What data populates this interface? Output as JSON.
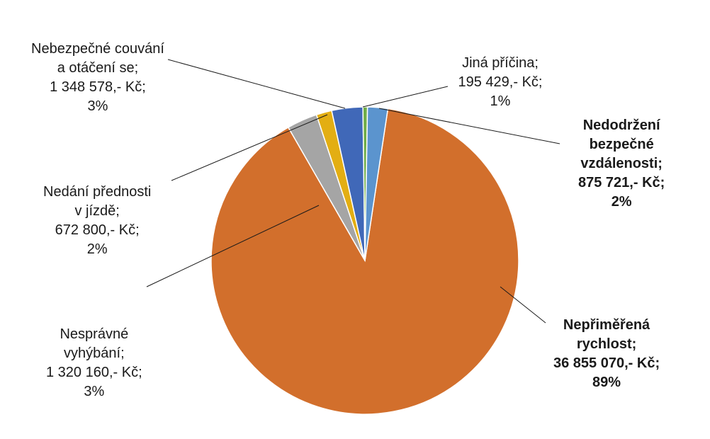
{
  "chart_data": {
    "type": "pie",
    "title": "",
    "slices": [
      {
        "name": "Nepřiměřená rychlost",
        "value": 36855070,
        "percent": 89,
        "color": "#D26F2C",
        "bold": true,
        "label_lines": [
          "Nepřiměřená",
          "rychlost;",
          "36 855 070,- Kč;",
          "89%"
        ]
      },
      {
        "name": "Nesprávné vyhýbání",
        "value": 1320160,
        "percent": 3,
        "color": "#A5A5A5",
        "bold": false,
        "label_lines": [
          "Nesprávné",
          "vyhýbání;",
          "1 320 160,- Kč;",
          "3%"
        ]
      },
      {
        "name": "Nedání přednosti v jízdě",
        "value": 672800,
        "percent": 2,
        "color": "#E3AE13",
        "bold": false,
        "label_lines": [
          "Nedání přednosti",
          "v jízdě;",
          "672 800,- Kč;",
          "2%"
        ]
      },
      {
        "name": "Nebezpečné couvání a otáčení se",
        "value": 1348578,
        "percent": 3,
        "color": "#4068B8",
        "bold": false,
        "label_lines": [
          "Nebezpečné couvání",
          "a otáčení se;",
          "1 348 578,- Kč;",
          "3%"
        ]
      },
      {
        "name": "Jiná příčina",
        "value": 195429,
        "percent": 1,
        "color": "#6FAD47",
        "bold": false,
        "label_lines": [
          "Jiná příčina;",
          "195 429,- Kč;",
          "1%"
        ]
      },
      {
        "name": "Nedodržení bezpečné vzdálenosti",
        "value": 875721,
        "percent": 2,
        "color": "#5B94CE",
        "bold": true,
        "label_lines": [
          "Nedodržení",
          "bezpečné",
          "vzdálenosti;",
          "875 721,- Kč;",
          "2%"
        ]
      }
    ],
    "start_angle_deg": 8.6,
    "direction": "clockwise",
    "legend": "none"
  }
}
